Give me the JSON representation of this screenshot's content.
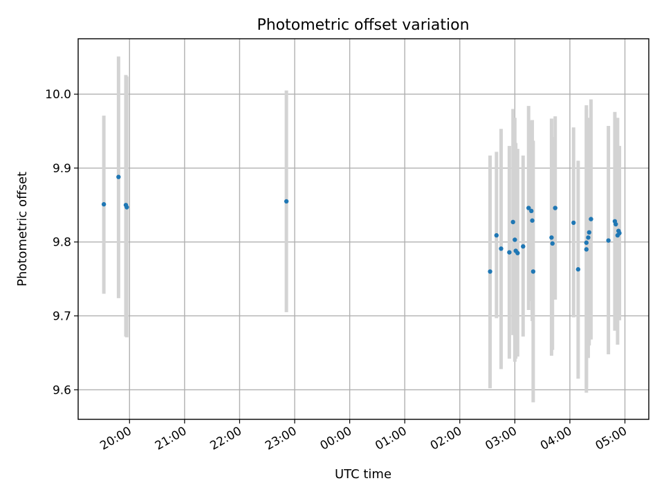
{
  "chart_data": {
    "type": "scatter",
    "title": "Photometric offset variation",
    "xlabel": "UTC time",
    "ylabel": "Photometric offset",
    "grid": true,
    "x_axis": {
      "unit": "UTC time of day",
      "range": [
        "19:04",
        "05:26"
      ],
      "ticks": [
        "20:00",
        "21:00",
        "22:00",
        "23:00",
        "00:00",
        "01:00",
        "02:00",
        "03:00",
        "04:00",
        "05:00"
      ]
    },
    "y_axis": {
      "range": [
        9.56,
        10.075
      ],
      "ticks": [
        9.6,
        9.7,
        9.8,
        9.9,
        10.0
      ],
      "tick_labels": [
        "9.6",
        "9.7",
        "9.8",
        "9.9",
        "10.0"
      ]
    },
    "colors": {
      "points": "#1f77b4",
      "error_bars": "#d3d3d3",
      "grid": "#b0b0b0"
    },
    "series": [
      {
        "points": [
          {
            "time": "19:32",
            "value": 9.851,
            "err_low": 9.73,
            "err_high": 9.971
          },
          {
            "time": "19:48",
            "value": 9.888,
            "err_low": 9.724,
            "err_high": 10.051
          },
          {
            "time": "19:56",
            "value": 9.85,
            "err_low": 9.672,
            "err_high": 10.026
          },
          {
            "time": "19:57",
            "value": 9.847,
            "err_low": 9.671,
            "err_high": 10.024
          },
          {
            "time": "22:51",
            "value": 9.855,
            "err_low": 9.705,
            "err_high": 10.005
          },
          {
            "time": "02:33",
            "value": 9.76,
            "err_low": 9.602,
            "err_high": 9.917
          },
          {
            "time": "02:40",
            "value": 9.809,
            "err_low": 9.697,
            "err_high": 9.922
          },
          {
            "time": "02:45",
            "value": 9.791,
            "err_low": 9.628,
            "err_high": 9.953
          },
          {
            "time": "02:54",
            "value": 9.786,
            "err_low": 9.642,
            "err_high": 9.93
          },
          {
            "time": "02:58",
            "value": 9.827,
            "err_low": 9.674,
            "err_high": 9.98
          },
          {
            "time": "03:00",
            "value": 9.803,
            "err_low": 9.638,
            "err_high": 9.968
          },
          {
            "time": "03:01",
            "value": 9.788,
            "err_low": 9.642,
            "err_high": 9.934
          },
          {
            "time": "03:03",
            "value": 9.785,
            "err_low": 9.645,
            "err_high": 9.926
          },
          {
            "time": "03:09",
            "value": 9.794,
            "err_low": 9.672,
            "err_high": 9.917
          },
          {
            "time": "03:15",
            "value": 9.846,
            "err_low": 9.708,
            "err_high": 9.984
          },
          {
            "time": "03:18",
            "value": 9.842,
            "err_low": 9.72,
            "err_high": 9.964
          },
          {
            "time": "03:19",
            "value": 9.829,
            "err_low": 9.693,
            "err_high": 9.965
          },
          {
            "time": "03:20",
            "value": 9.76,
            "err_low": 9.583,
            "err_high": 9.937
          },
          {
            "time": "03:40",
            "value": 9.806,
            "err_low": 9.646,
            "err_high": 9.967
          },
          {
            "time": "03:41",
            "value": 9.798,
            "err_low": 9.654,
            "err_high": 9.942
          },
          {
            "time": "03:44",
            "value": 9.846,
            "err_low": 9.722,
            "err_high": 9.97
          },
          {
            "time": "04:04",
            "value": 9.826,
            "err_low": 9.698,
            "err_high": 9.955
          },
          {
            "time": "04:09",
            "value": 9.763,
            "err_low": 9.615,
            "err_high": 9.91
          },
          {
            "time": "04:18",
            "value": 9.799,
            "err_low": 9.596,
            "err_high": 9.985
          },
          {
            "time": "04:18",
            "value": 9.79,
            "err_low": 9.603,
            "err_high": 9.979
          },
          {
            "time": "04:20",
            "value": 9.806,
            "err_low": 9.643,
            "err_high": 9.968
          },
          {
            "time": "04:21",
            "value": 9.813,
            "err_low": 9.66,
            "err_high": 9.966
          },
          {
            "time": "04:23",
            "value": 9.831,
            "err_low": 9.668,
            "err_high": 9.993
          },
          {
            "time": "04:42",
            "value": 9.802,
            "err_low": 9.648,
            "err_high": 9.957
          },
          {
            "time": "04:49",
            "value": 9.828,
            "err_low": 9.68,
            "err_high": 9.976
          },
          {
            "time": "04:50",
            "value": 9.824,
            "err_low": 9.69,
            "err_high": 9.958
          },
          {
            "time": "04:52",
            "value": 9.809,
            "err_low": 9.661,
            "err_high": 9.968
          },
          {
            "time": "04:53",
            "value": 9.815,
            "err_low": 9.695,
            "err_high": 9.93
          },
          {
            "time": "04:54",
            "value": 9.812,
            "err_low": 9.694,
            "err_high": 9.93
          }
        ]
      }
    ]
  }
}
